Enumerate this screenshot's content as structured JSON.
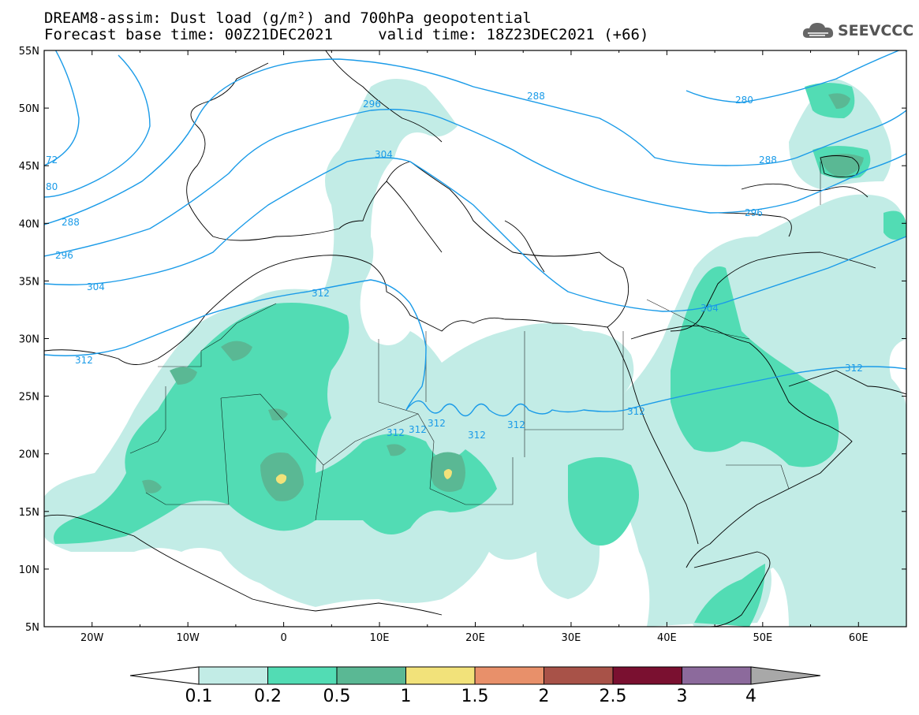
{
  "title": {
    "line1": "DREAM8-assim: Dust load (g/m²) and 700hPa geopotential",
    "line2": "Forecast base time: 00Z21DEC2021     valid time: 18Z23DEC2021 (+66)"
  },
  "logo": {
    "text": "SEEVCCC",
    "icon": "cloud-icon"
  },
  "map": {
    "lon_range": [
      -25,
      65
    ],
    "lat_range": [
      5,
      55
    ],
    "lon_ticks": [
      "20W",
      "10W",
      "0",
      "10E",
      "20E",
      "30E",
      "40E",
      "50E",
      "60E"
    ],
    "lat_ticks": [
      "55N",
      "50N",
      "45N",
      "40N",
      "35N",
      "30N",
      "25N",
      "20N",
      "15N",
      "10N",
      "5N"
    ],
    "contour_color": "#1a9be8",
    "contour_labels": [
      "296",
      "288",
      "280",
      "72",
      "80",
      "304",
      "288",
      "296",
      "304",
      "312",
      "304",
      "312",
      "312",
      "312",
      "312",
      "312",
      "312",
      "312",
      "288",
      "296"
    ]
  },
  "colorbar": {
    "colors": [
      "#c2ece6",
      "#52dcb4",
      "#5ab894",
      "#f2e27a",
      "#e8906a",
      "#a85248",
      "#7a1030",
      "#8c6a9c"
    ],
    "labels": [
      "0.1",
      "0.2",
      "0.5",
      "1",
      "1.5",
      "2",
      "2.5",
      "3",
      "4"
    ]
  }
}
